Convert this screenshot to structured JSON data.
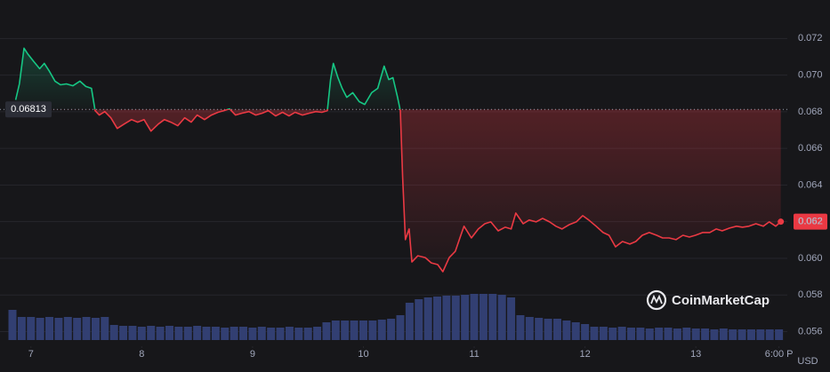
{
  "chart_data": {
    "type": "line",
    "x": [
      -3.3,
      -2.5,
      -1.5,
      -0.6,
      0.6,
      1.9,
      2.9,
      3.9,
      5.2,
      6.4,
      7.7,
      9.1,
      10.6,
      11.9,
      13.1,
      13.9,
      14.8,
      16.0,
      17.3,
      18.7,
      20.2,
      21.8,
      23.1,
      24.5,
      26.0,
      27.6,
      28.9,
      30.3,
      31.8,
      33.3,
      34.7,
      36.0,
      37.6,
      39.1,
      40.5,
      41.8,
      43.0,
      44.3,
      45.7,
      47.2,
      48.7,
      50.1,
      51.4,
      53.0,
      54.5,
      55.9,
      57.2,
      58.8,
      60.3,
      61.7,
      63.0,
      64.2,
      64.9,
      65.5,
      66.5,
      67.4,
      68.4,
      69.7,
      71.1,
      72.3,
      73.8,
      75.1,
      76.5,
      77.5,
      78.4,
      79.4,
      80.0,
      80.5,
      81.1,
      81.9,
      82.5,
      83.8,
      85.4,
      86.7,
      88.1,
      89.2,
      90.6,
      91.9,
      93.1,
      93.8,
      95.4,
      96.9,
      98.3,
      99.6,
      101.2,
      102.7,
      104.0,
      105.0,
      106.6,
      107.9,
      109.4,
      110.8,
      112.3,
      113.7,
      115.0,
      116.6,
      118.1,
      119.5,
      120.8,
      122.4,
      123.9,
      125.2,
      126.6,
      128.1,
      129.7,
      131.0,
      132.4,
      133.9,
      135.5,
      136.8,
      138.2,
      139.7,
      141.2,
      142.6,
      143.9,
      145.5,
      147.0,
      148.4,
      149.7,
      151.3,
      152.8,
      154.1,
      155.5,
      157.0,
      158.6,
      159.9,
      161.3,
      162.4
    ],
    "values": [
      0.06865,
      0.06952,
      0.07147,
      0.07113,
      0.07074,
      0.07035,
      0.07064,
      0.07025,
      0.06967,
      0.06947,
      0.06952,
      0.06942,
      0.06967,
      0.06938,
      0.06928,
      0.06806,
      0.06782,
      0.06801,
      0.06767,
      0.06709,
      0.06733,
      0.06757,
      0.06743,
      0.06757,
      0.06694,
      0.06733,
      0.06757,
      0.06743,
      0.06724,
      0.06767,
      0.06743,
      0.06782,
      0.06757,
      0.06782,
      0.06797,
      0.06806,
      0.06816,
      0.06782,
      0.06792,
      0.06801,
      0.06782,
      0.06792,
      0.06806,
      0.06777,
      0.06797,
      0.06777,
      0.06797,
      0.06782,
      0.06792,
      0.06801,
      0.06797,
      0.06806,
      0.06976,
      0.07064,
      0.06986,
      0.06928,
      0.06879,
      0.06904,
      0.06855,
      0.0684,
      0.06904,
      0.06928,
      0.07049,
      0.06976,
      0.06986,
      0.06879,
      0.06806,
      0.06442,
      0.06102,
      0.0616,
      0.0598,
      0.06014,
      0.06004,
      0.05975,
      0.05966,
      0.05927,
      0.06004,
      0.06038,
      0.06126,
      0.06175,
      0.06111,
      0.0616,
      0.06189,
      0.06199,
      0.0615,
      0.0617,
      0.0616,
      0.06247,
      0.06189,
      0.06209,
      0.06199,
      0.06218,
      0.06199,
      0.06175,
      0.0616,
      0.06184,
      0.06199,
      0.06233,
      0.06209,
      0.06175,
      0.06141,
      0.06126,
      0.06063,
      0.06092,
      0.06078,
      0.06092,
      0.06126,
      0.06141,
      0.06126,
      0.06111,
      0.06111,
      0.06102,
      0.06126,
      0.06116,
      0.06126,
      0.06141,
      0.06141,
      0.0616,
      0.0615,
      0.06165,
      0.06175,
      0.0617,
      0.06175,
      0.06189,
      0.06175,
      0.06199,
      0.06175,
      0.062
    ],
    "up_color": "#16c784",
    "down_color": "#ea3943",
    "baseline": 0.06813,
    "last_price": 0.062,
    "xlim": [
      -4,
      164
    ],
    "xticks": [
      {
        "value": 0,
        "label": "7"
      },
      {
        "value": 24,
        "label": "8"
      },
      {
        "value": 48,
        "label": "9"
      },
      {
        "value": 72,
        "label": "10"
      },
      {
        "value": 96,
        "label": "11"
      },
      {
        "value": 120,
        "label": "12"
      },
      {
        "value": 144,
        "label": "13"
      },
      {
        "value": 162,
        "label": "6:00 P"
      }
    ],
    "ylim": [
      0.0552,
      0.0741
    ],
    "yticks": [
      0.056,
      0.058,
      {
        "value": 0.06,
        "label": "0.060"
      },
      0.062,
      0.064,
      0.066,
      0.068,
      {
        "value": 0.07,
        "label": "0.070"
      },
      0.072
    ],
    "grid": true,
    "currency": "USD",
    "watermark": "CoinMarketCap",
    "volume": {
      "color": "#323f72",
      "y2lim": [
        0,
        100
      ],
      "x": [
        -4,
        -2,
        0,
        2,
        4,
        6,
        8,
        10,
        12,
        14,
        16,
        18,
        20,
        22,
        24,
        26,
        28,
        30,
        32,
        34,
        36,
        38,
        40,
        42,
        44,
        46,
        48,
        50,
        52,
        54,
        56,
        58,
        60,
        62,
        64,
        66,
        68,
        70,
        72,
        74,
        76,
        78,
        80,
        82,
        84,
        86,
        88,
        90,
        92,
        94,
        96,
        98,
        100,
        102,
        104,
        106,
        108,
        110,
        112,
        114,
        116,
        118,
        120,
        122,
        124,
        126,
        128,
        130,
        132,
        134,
        136,
        138,
        140,
        142,
        144,
        146,
        148,
        150,
        152,
        154,
        156,
        158,
        160,
        162
      ],
      "values": [
        34,
        26,
        26,
        25,
        26,
        25,
        26,
        25,
        26,
        25,
        26,
        17,
        16,
        16,
        15,
        16,
        15,
        16,
        15,
        15,
        16,
        15,
        15,
        14,
        15,
        15,
        14,
        15,
        14,
        14,
        15,
        14,
        14,
        15,
        20,
        22,
        22,
        22,
        22,
        22,
        23,
        24,
        28,
        42,
        46,
        48,
        49,
        50,
        50,
        51,
        52,
        52,
        52,
        51,
        48,
        28,
        26,
        25,
        24,
        24,
        22,
        20,
        18,
        15,
        15,
        14,
        15,
        14,
        14,
        13,
        14,
        14,
        13,
        14,
        13,
        13,
        12,
        13,
        12,
        12,
        12,
        12,
        12,
        12
      ]
    }
  }
}
